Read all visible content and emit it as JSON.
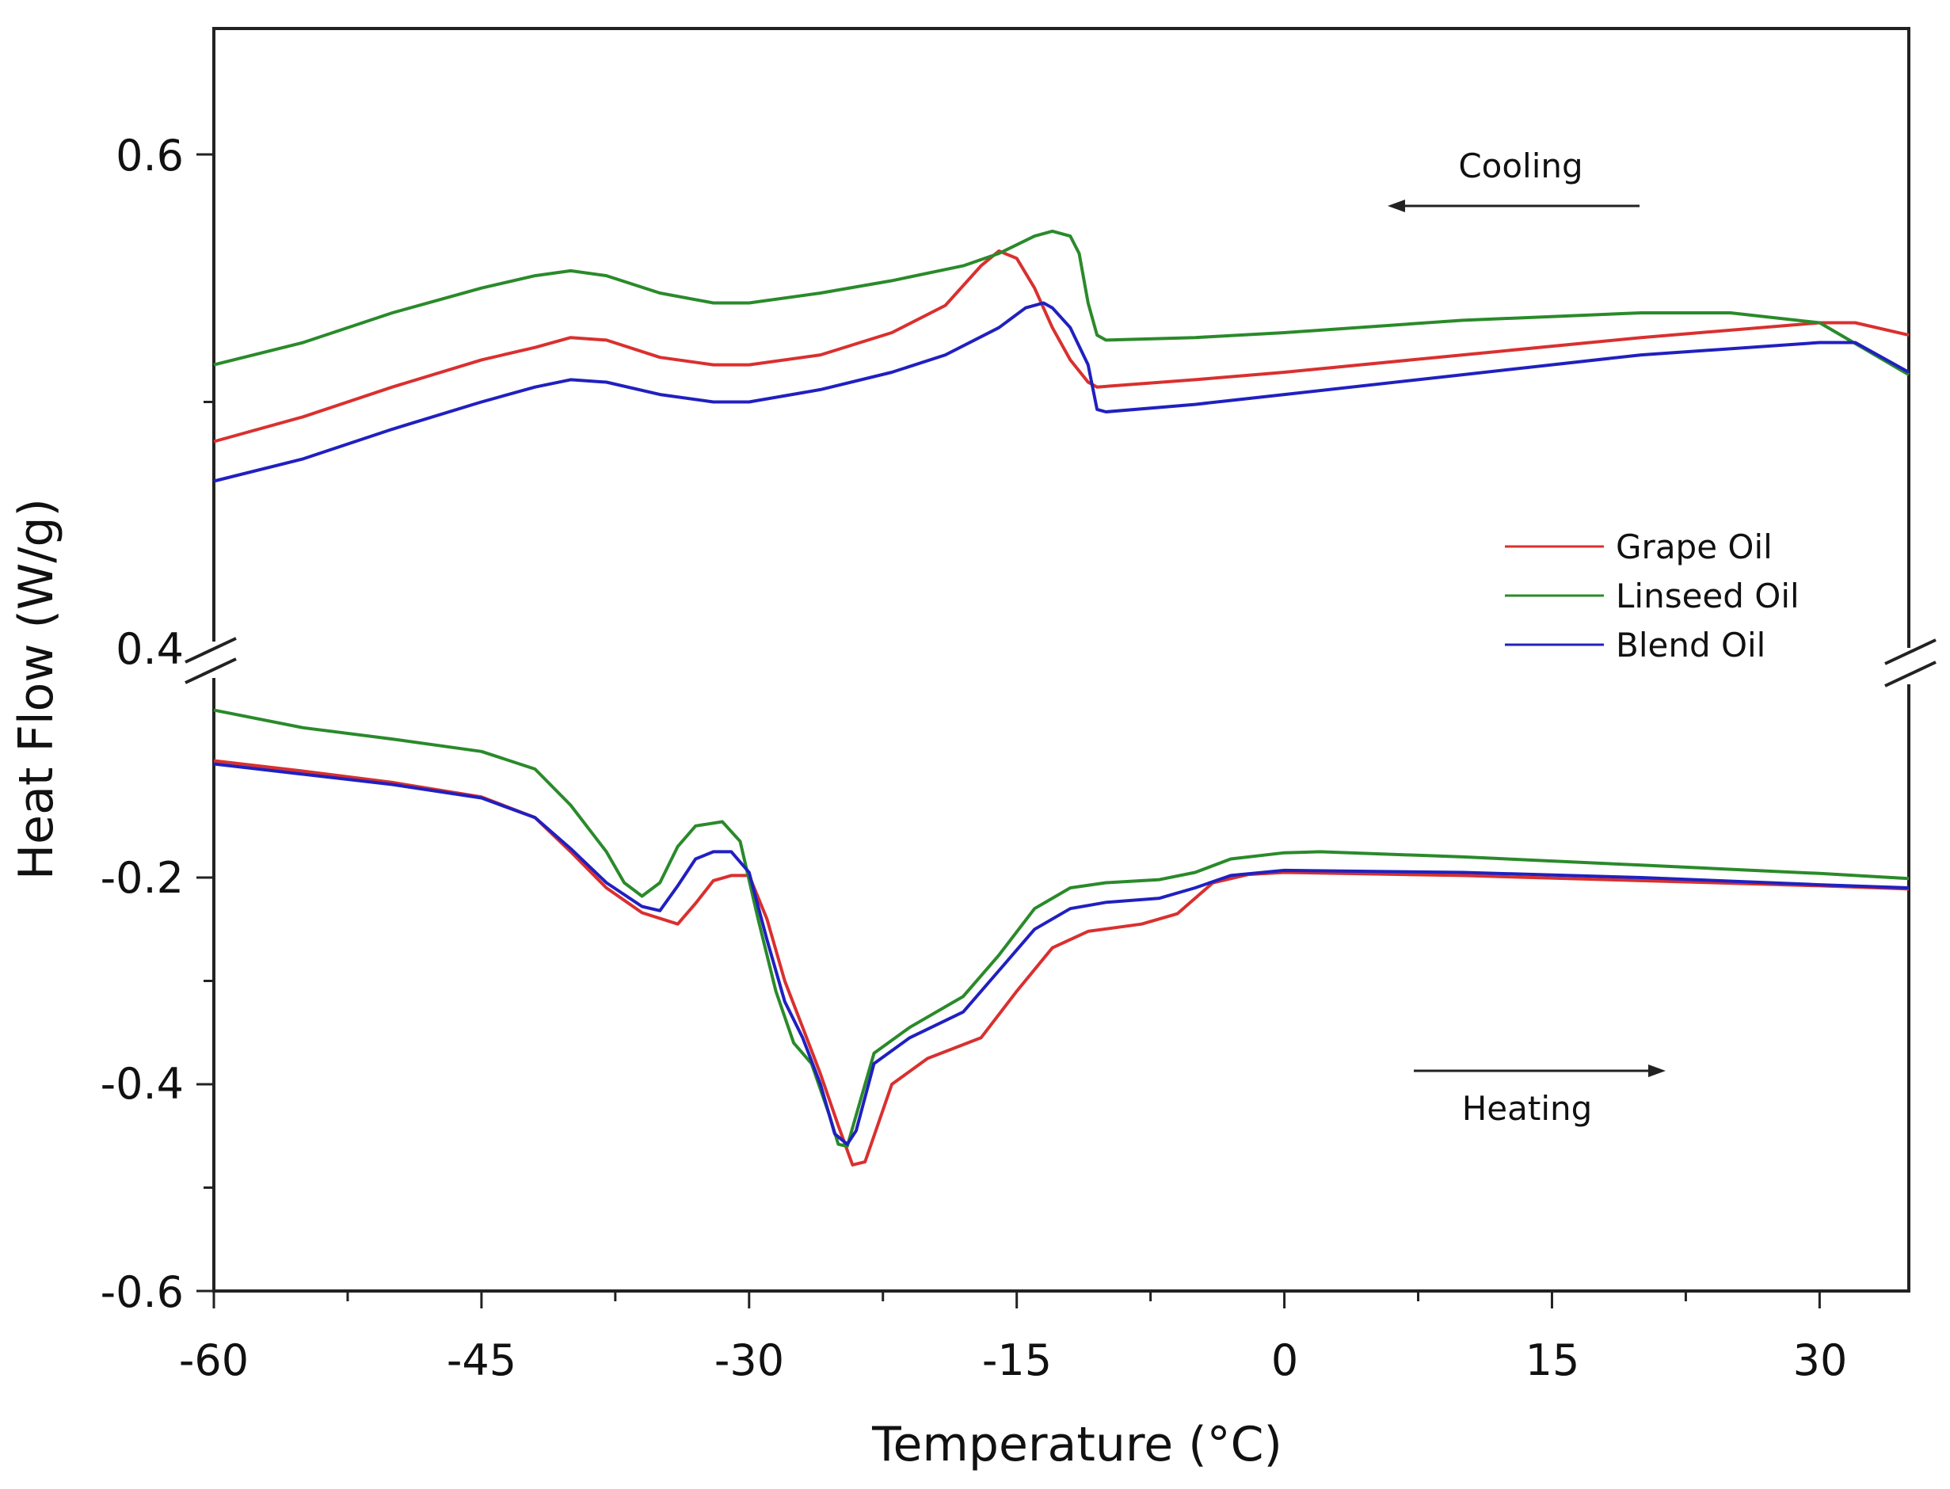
{
  "chart_data": {
    "type": "line",
    "title": "",
    "xlabel": "Temperature (°C)",
    "ylabel": "Heat Flow (W/g)",
    "xlim": [
      -60,
      35
    ],
    "x_ticks": [
      -60,
      -45,
      -30,
      -15,
      0,
      15,
      30
    ],
    "x_tick_labels": [
      "-60",
      "-45",
      "-30",
      "-15",
      "0",
      "15",
      "30"
    ],
    "axis_break": true,
    "upper_panel": {
      "ylim": [
        0.4,
        0.65
      ],
      "y_ticks": [
        0.4,
        0.6
      ],
      "y_tick_labels": [
        "0.4",
        "0.6"
      ]
    },
    "lower_panel": {
      "ylim": [
        -0.6,
        -0.01
      ],
      "y_ticks": [
        -0.2,
        -0.4,
        -0.6
      ],
      "y_tick_labels": [
        "-0.2",
        "-0.4",
        "-0.6"
      ]
    },
    "annotations": [
      {
        "text": "Cooling",
        "arrow": "left",
        "panel": "upper"
      },
      {
        "text": "Heating",
        "arrow": "right",
        "panel": "lower"
      }
    ],
    "legend": {
      "position": "middle-right",
      "entries": [
        "Grape Oil",
        "Linseed Oil",
        "Blend Oil"
      ]
    },
    "series": [
      {
        "name": "Grape Oil",
        "color": "#d9302f",
        "cooling": [
          [
            -60,
            0.484
          ],
          [
            -55,
            0.494
          ],
          [
            -50,
            0.506
          ],
          [
            -45,
            0.517
          ],
          [
            -42,
            0.522
          ],
          [
            -40,
            0.526
          ],
          [
            -38,
            0.525
          ],
          [
            -35,
            0.518
          ],
          [
            -32,
            0.515
          ],
          [
            -30,
            0.515
          ],
          [
            -26,
            0.519
          ],
          [
            -22,
            0.528
          ],
          [
            -19,
            0.539
          ],
          [
            -17,
            0.555
          ],
          [
            -16,
            0.561
          ],
          [
            -15,
            0.558
          ],
          [
            -14,
            0.546
          ],
          [
            -13,
            0.53
          ],
          [
            -12,
            0.517
          ],
          [
            -11,
            0.508
          ],
          [
            -10.5,
            0.506
          ],
          [
            -5,
            0.509
          ],
          [
            0,
            0.512
          ],
          [
            10,
            0.519
          ],
          [
            20,
            0.526
          ],
          [
            30,
            0.532
          ],
          [
            32,
            0.532
          ],
          [
            35,
            0.527
          ]
        ],
        "heating": [
          [
            -60,
            -0.087
          ],
          [
            -55,
            -0.097
          ],
          [
            -50,
            -0.108
          ],
          [
            -45,
            -0.122
          ],
          [
            -42,
            -0.142
          ],
          [
            -40,
            -0.175
          ],
          [
            -38,
            -0.21
          ],
          [
            -36,
            -0.234
          ],
          [
            -34,
            -0.245
          ],
          [
            -33,
            -0.225
          ],
          [
            -32,
            -0.203
          ],
          [
            -31,
            -0.198
          ],
          [
            -30,
            -0.198
          ],
          [
            -29,
            -0.24
          ],
          [
            -28,
            -0.3
          ],
          [
            -27,
            -0.345
          ],
          [
            -26,
            -0.39
          ],
          [
            -25,
            -0.44
          ],
          [
            -24.2,
            -0.478
          ],
          [
            -23.5,
            -0.475
          ],
          [
            -22,
            -0.4
          ],
          [
            -20,
            -0.375
          ],
          [
            -17,
            -0.355
          ],
          [
            -15,
            -0.31
          ],
          [
            -13,
            -0.268
          ],
          [
            -11,
            -0.252
          ],
          [
            -8,
            -0.245
          ],
          [
            -6,
            -0.235
          ],
          [
            -4,
            -0.205
          ],
          [
            -2,
            -0.197
          ],
          [
            0,
            -0.195
          ],
          [
            10,
            -0.198
          ],
          [
            20,
            -0.203
          ],
          [
            30,
            -0.208
          ],
          [
            35,
            -0.211
          ]
        ]
      },
      {
        "name": "Linseed Oil",
        "color": "#2a8a2a",
        "cooling": [
          [
            -60,
            0.515
          ],
          [
            -55,
            0.524
          ],
          [
            -50,
            0.536
          ],
          [
            -45,
            0.546
          ],
          [
            -42,
            0.551
          ],
          [
            -40,
            0.553
          ],
          [
            -38,
            0.551
          ],
          [
            -35,
            0.544
          ],
          [
            -32,
            0.54
          ],
          [
            -30,
            0.54
          ],
          [
            -26,
            0.544
          ],
          [
            -22,
            0.549
          ],
          [
            -18,
            0.555
          ],
          [
            -16,
            0.56
          ],
          [
            -14,
            0.567
          ],
          [
            -13,
            0.569
          ],
          [
            -12,
            0.567
          ],
          [
            -11.5,
            0.56
          ],
          [
            -11,
            0.54
          ],
          [
            -10.5,
            0.527
          ],
          [
            -10,
            0.525
          ],
          [
            -5,
            0.526
          ],
          [
            0,
            0.528
          ],
          [
            10,
            0.533
          ],
          [
            20,
            0.536
          ],
          [
            25,
            0.536
          ],
          [
            30,
            0.532
          ],
          [
            35,
            0.511
          ]
        ],
        "heating": [
          [
            -60,
            -0.038
          ],
          [
            -55,
            -0.055
          ],
          [
            -50,
            -0.066
          ],
          [
            -45,
            -0.078
          ],
          [
            -42,
            -0.095
          ],
          [
            -40,
            -0.13
          ],
          [
            -38,
            -0.175
          ],
          [
            -37,
            -0.205
          ],
          [
            -36,
            -0.218
          ],
          [
            -35,
            -0.205
          ],
          [
            -34,
            -0.17
          ],
          [
            -33,
            -0.15
          ],
          [
            -31.5,
            -0.146
          ],
          [
            -30.5,
            -0.165
          ],
          [
            -29.5,
            -0.24
          ],
          [
            -28.5,
            -0.31
          ],
          [
            -27.5,
            -0.36
          ],
          [
            -26.5,
            -0.38
          ],
          [
            -25.5,
            -0.43
          ],
          [
            -25,
            -0.458
          ],
          [
            -24.5,
            -0.46
          ],
          [
            -24,
            -0.43
          ],
          [
            -23,
            -0.37
          ],
          [
            -21,
            -0.345
          ],
          [
            -18,
            -0.315
          ],
          [
            -16,
            -0.275
          ],
          [
            -14,
            -0.23
          ],
          [
            -12,
            -0.21
          ],
          [
            -10,
            -0.205
          ],
          [
            -7,
            -0.202
          ],
          [
            -5,
            -0.195
          ],
          [
            -3,
            -0.182
          ],
          [
            0,
            -0.176
          ],
          [
            2,
            -0.175
          ],
          [
            10,
            -0.18
          ],
          [
            20,
            -0.188
          ],
          [
            30,
            -0.196
          ],
          [
            35,
            -0.201
          ]
        ]
      },
      {
        "name": "Blend Oil",
        "color": "#2020c0",
        "cooling": [
          [
            -60,
            0.468
          ],
          [
            -55,
            0.477
          ],
          [
            -50,
            0.489
          ],
          [
            -45,
            0.5
          ],
          [
            -42,
            0.506
          ],
          [
            -40,
            0.509
          ],
          [
            -38,
            0.508
          ],
          [
            -35,
            0.503
          ],
          [
            -32,
            0.5
          ],
          [
            -30,
            0.5
          ],
          [
            -26,
            0.505
          ],
          [
            -22,
            0.512
          ],
          [
            -19,
            0.519
          ],
          [
            -16,
            0.53
          ],
          [
            -14.5,
            0.538
          ],
          [
            -13.5,
            0.54
          ],
          [
            -13,
            0.538
          ],
          [
            -12,
            0.53
          ],
          [
            -11,
            0.515
          ],
          [
            -10.5,
            0.497
          ],
          [
            -10,
            0.496
          ],
          [
            -5,
            0.499
          ],
          [
            0,
            0.503
          ],
          [
            10,
            0.511
          ],
          [
            20,
            0.519
          ],
          [
            30,
            0.524
          ],
          [
            32,
            0.524
          ],
          [
            35,
            0.512
          ]
        ],
        "heating": [
          [
            -60,
            -0.09
          ],
          [
            -55,
            -0.1
          ],
          [
            -50,
            -0.11
          ],
          [
            -45,
            -0.123
          ],
          [
            -42,
            -0.142
          ],
          [
            -40,
            -0.172
          ],
          [
            -38,
            -0.205
          ],
          [
            -36,
            -0.228
          ],
          [
            -35,
            -0.232
          ],
          [
            -34,
            -0.208
          ],
          [
            -33,
            -0.182
          ],
          [
            -32,
            -0.175
          ],
          [
            -31,
            -0.175
          ],
          [
            -30,
            -0.195
          ],
          [
            -29,
            -0.26
          ],
          [
            -28,
            -0.32
          ],
          [
            -27,
            -0.355
          ],
          [
            -26,
            -0.4
          ],
          [
            -25.2,
            -0.448
          ],
          [
            -24.5,
            -0.458
          ],
          [
            -24,
            -0.445
          ],
          [
            -23,
            -0.38
          ],
          [
            -21,
            -0.355
          ],
          [
            -18,
            -0.33
          ],
          [
            -16,
            -0.29
          ],
          [
            -14,
            -0.25
          ],
          [
            -12,
            -0.23
          ],
          [
            -10,
            -0.224
          ],
          [
            -7,
            -0.22
          ],
          [
            -5,
            -0.21
          ],
          [
            -3,
            -0.198
          ],
          [
            0,
            -0.193
          ],
          [
            10,
            -0.195
          ],
          [
            20,
            -0.2
          ],
          [
            30,
            -0.207
          ],
          [
            35,
            -0.21
          ]
        ]
      }
    ]
  }
}
